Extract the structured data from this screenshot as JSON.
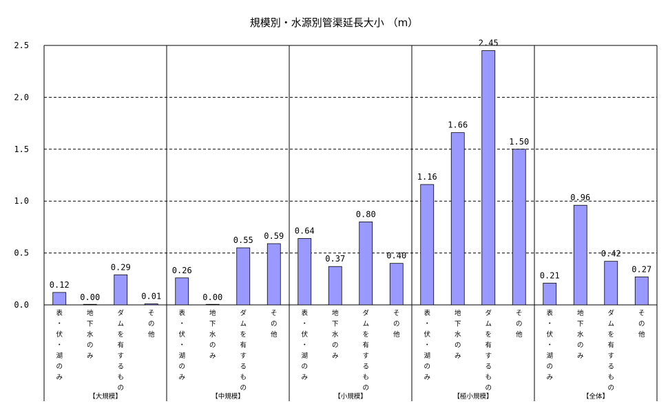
{
  "chart_data": {
    "type": "bar",
    "title": "規模別・水源別管渠延長大小 （m）",
    "ylim": [
      0,
      2.5
    ],
    "yticks": [
      "0.0",
      "0.5",
      "1.0",
      "1.5",
      "2.0",
      "2.5"
    ],
    "ytick_values": [
      0,
      0.5,
      1.0,
      1.5,
      2.0,
      2.5
    ],
    "grid": "horizontal-dashed",
    "bar_color": "#9999ff",
    "categories": [
      "表・伏・湖のみ",
      "地下水のみ",
      "ダムを有するもの",
      "その他"
    ],
    "groups": [
      {
        "name": "【大規模】",
        "values": [
          0.12,
          0.0,
          0.29,
          0.01
        ],
        "labels": [
          "0.12",
          "0.00",
          "0.29",
          "0.01"
        ]
      },
      {
        "name": "【中規模】",
        "values": [
          0.26,
          0.0,
          0.55,
          0.59
        ],
        "labels": [
          "0.26",
          "0.00",
          "0.55",
          "0.59"
        ]
      },
      {
        "name": "【小規模】",
        "values": [
          0.64,
          0.37,
          0.8,
          0.4
        ],
        "labels": [
          "0.64",
          "0.37",
          "0.80",
          "0.40"
        ]
      },
      {
        "name": "【極小規模】",
        "values": [
          1.16,
          1.66,
          2.45,
          1.5
        ],
        "labels": [
          "1.16",
          "1.66",
          "2.45",
          "1.50"
        ]
      },
      {
        "name": "【全体】",
        "values": [
          0.21,
          0.96,
          0.42,
          0.27
        ],
        "labels": [
          "0.21",
          "0.96",
          "0.42",
          "0.27"
        ]
      }
    ]
  }
}
